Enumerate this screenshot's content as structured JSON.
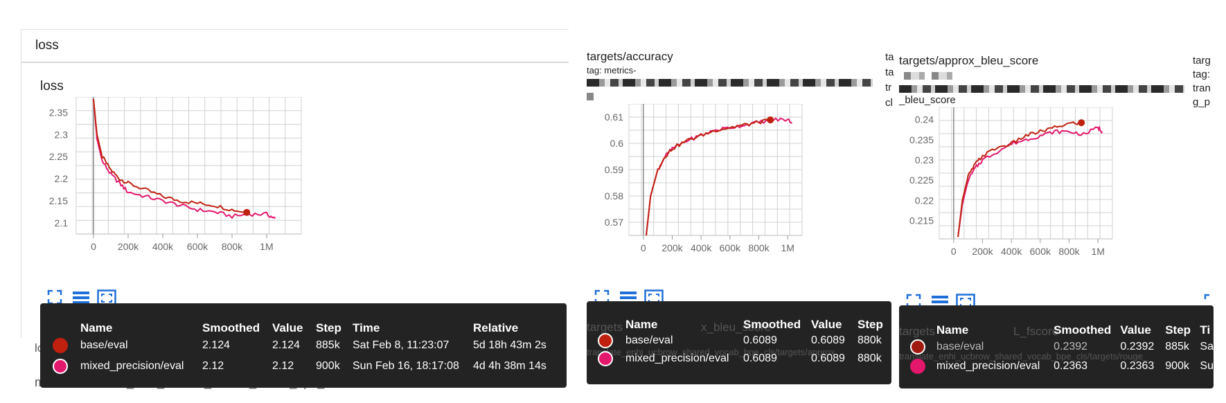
{
  "section": {
    "title": "loss",
    "ghost_label": "loss",
    "ghost_tag": "metrics-translate_enhi_ucbrow_shared_vocab_bpe_cls"
  },
  "colors": {
    "base": "#c0210f",
    "mixed": "#e3176c",
    "tooltip_bg": "#232323",
    "icon_blue": "#1e6fd9",
    "grid": "#d0d0d0"
  },
  "icons": [
    "fit-domain-icon",
    "toggle-log-icon",
    "expand-chart-icon"
  ],
  "chart_data": [
    {
      "type": "line",
      "title": "loss",
      "x_ticks": [
        "0",
        "200k",
        "400k",
        "600k",
        "800k",
        "1M"
      ],
      "y_ticks": [
        "2.1",
        "2.15",
        "2.2",
        "2.25",
        "2.3",
        "2.35"
      ],
      "xlim": [
        -100000,
        1200000
      ],
      "ylim": [
        2.075,
        2.385
      ],
      "grid": true,
      "series": [
        {
          "name": "base/eval",
          "x": [
            0,
            20000,
            50000,
            100000,
            150000,
            200000,
            300000,
            400000,
            500000,
            600000,
            700000,
            800000,
            885000
          ],
          "y": [
            2.38,
            2.3,
            2.25,
            2.22,
            2.2,
            2.19,
            2.175,
            2.16,
            2.15,
            2.145,
            2.14,
            2.13,
            2.124
          ]
        },
        {
          "name": "mixed_precision/eval",
          "x": [
            0,
            20000,
            50000,
            100000,
            150000,
            200000,
            300000,
            400000,
            500000,
            600000,
            700000,
            800000,
            900000,
            1000000,
            1050000
          ],
          "y": [
            2.38,
            2.29,
            2.24,
            2.21,
            2.19,
            2.17,
            2.16,
            2.15,
            2.14,
            2.13,
            2.125,
            2.115,
            2.12,
            2.12,
            2.11
          ]
        }
      ],
      "tooltip": {
        "headers": [
          "Name",
          "Smoothed",
          "Value",
          "Step",
          "Time",
          "Relative"
        ],
        "rows": [
          [
            "base/eval",
            "2.124",
            "2.124",
            "885k",
            "Sat Feb 8, 11:23:07",
            "5d 18h 43m 2s"
          ],
          [
            "mixed_precision/eval",
            "2.12",
            "2.12",
            "900k",
            "Sun Feb 16, 18:17:08",
            "4d 4h 38m 14s"
          ]
        ]
      }
    },
    {
      "type": "line",
      "title": "targets/accuracy",
      "tag": "tag: metrics-",
      "x_ticks": [
        "0",
        "200k",
        "400k",
        "600k",
        "800k",
        "1M"
      ],
      "y_ticks": [
        "0.57",
        "0.58",
        "0.59",
        "0.6",
        "0.61"
      ],
      "xlim": [
        -100000,
        1100000
      ],
      "ylim": [
        0.565,
        0.615
      ],
      "grid": true,
      "series": [
        {
          "name": "base/eval",
          "x": [
            20000,
            50000,
            100000,
            150000,
            200000,
            300000,
            400000,
            500000,
            600000,
            700000,
            800000,
            880000
          ],
          "y": [
            0.565,
            0.58,
            0.59,
            0.595,
            0.598,
            0.601,
            0.603,
            0.605,
            0.606,
            0.607,
            0.608,
            0.6089
          ]
        },
        {
          "name": "mixed_precision/eval",
          "x": [
            20000,
            50000,
            100000,
            150000,
            200000,
            300000,
            400000,
            500000,
            600000,
            700000,
            800000,
            900000,
            1000000,
            1030000
          ],
          "y": [
            0.565,
            0.58,
            0.59,
            0.595,
            0.598,
            0.601,
            0.603,
            0.605,
            0.606,
            0.607,
            0.608,
            0.609,
            0.609,
            0.608
          ]
        }
      ],
      "tooltip": {
        "ghost_title": "targets",
        "ghost_title_tail": "x_bleu_score",
        "ghost_tag": "translate_enhi_ucbrow_shared_vocab_bpe_cls/targets/approx",
        "headers": [
          "Name",
          "Smoothed",
          "Value",
          "Step"
        ],
        "rows": [
          [
            "base/eval",
            "0.6089",
            "0.6089",
            "880k"
          ],
          [
            "mixed_precision/eval",
            "0.6089",
            "0.6089",
            "880k"
          ]
        ]
      }
    },
    {
      "type": "line",
      "title": "targets/approx_bleu_score",
      "tag": "_bleu_score",
      "x_ticks": [
        "0",
        "200k",
        "400k",
        "600k",
        "800k",
        "1M"
      ],
      "y_ticks": [
        "0.215",
        "0.22",
        "0.225",
        "0.23",
        "0.235",
        "0.24"
      ],
      "xlim": [
        -100000,
        1100000
      ],
      "ylim": [
        0.2105,
        0.243
      ],
      "grid": true,
      "series": [
        {
          "name": "base/eval",
          "x": [
            30000,
            60000,
            100000,
            150000,
            200000,
            300000,
            400000,
            500000,
            600000,
            700000,
            800000,
            885000
          ],
          "y": [
            0.211,
            0.22,
            0.226,
            0.229,
            0.231,
            0.233,
            0.234,
            0.236,
            0.237,
            0.238,
            0.239,
            0.2392
          ]
        },
        {
          "name": "mixed_precision/eval",
          "x": [
            30000,
            60000,
            100000,
            150000,
            200000,
            300000,
            400000,
            500000,
            600000,
            700000,
            800000,
            900000,
            1000000,
            1030000
          ],
          "y": [
            0.211,
            0.219,
            0.225,
            0.228,
            0.23,
            0.232,
            0.234,
            0.235,
            0.236,
            0.237,
            0.237,
            0.2363,
            0.238,
            0.237
          ]
        }
      ],
      "tooltip": {
        "ghost_title": "targets",
        "ghost_title_tail": "L_fscore",
        "ghost_tag": "translate_enhi_ucbrow_shared_vocab_bpe_cls/targets/rouge_",
        "headers": [
          "Name",
          "Smoothed",
          "Value",
          "Step",
          "Ti"
        ],
        "rows": [
          [
            "base/eval",
            "0.2392",
            "0.2392",
            "885k",
            "Sa"
          ],
          [
            "mixed_precision/eval",
            "0.2363",
            "0.2363",
            "900k",
            "Su"
          ]
        ]
      }
    }
  ],
  "edge_fragments": {
    "col3_left": [
      "ta",
      "ta",
      "tr",
      "cl"
    ],
    "col3_right": [
      "targ",
      "tag:",
      "tran",
      "g_p"
    ]
  }
}
